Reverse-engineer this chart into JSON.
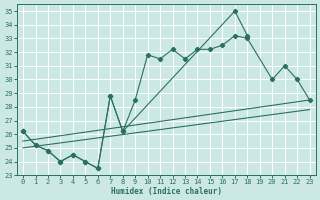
{
  "bg_color": "#cce8e4",
  "line_color": "#2a7060",
  "grid_color": "#ffffff",
  "xlabel": "Humidex (Indice chaleur)",
  "xlim": [
    -0.5,
    23.5
  ],
  "ylim": [
    23,
    35.5
  ],
  "yticks": [
    23,
    24,
    25,
    26,
    27,
    28,
    29,
    30,
    31,
    32,
    33,
    34,
    35
  ],
  "xticks": [
    0,
    1,
    2,
    3,
    4,
    5,
    6,
    7,
    8,
    9,
    10,
    11,
    12,
    13,
    14,
    15,
    16,
    17,
    18,
    19,
    20,
    21,
    22,
    23
  ],
  "line1_x": [
    0,
    1,
    2,
    3,
    4,
    5,
    6,
    7,
    8,
    9,
    10,
    11,
    12,
    13,
    14,
    15,
    16,
    17,
    18,
    19,
    20,
    21,
    22,
    23
  ],
  "line1_y": [
    26.2,
    25.2,
    24.8,
    24.0,
    24.5,
    24.0,
    23.5,
    28.8,
    26.2,
    null,
    null,
    null,
    null,
    null,
    null,
    null,
    null,
    35.0,
    33.2,
    null,
    null,
    null,
    null,
    null
  ],
  "line1_markers_x": [
    0,
    1,
    2,
    3,
    4,
    5,
    6,
    7,
    8,
    17,
    18
  ],
  "line1_markers_y": [
    26.2,
    25.2,
    24.8,
    24.0,
    24.5,
    24.0,
    23.5,
    28.8,
    26.2,
    35.0,
    33.2
  ],
  "line2_x": [
    0,
    1,
    2,
    3,
    4,
    5,
    6,
    7,
    8,
    9,
    10,
    11,
    12,
    13,
    14,
    15,
    16,
    17,
    18,
    19,
    20,
    21,
    22,
    23
  ],
  "line2_y": [
    26.2,
    25.2,
    24.8,
    24.0,
    24.5,
    24.0,
    23.5,
    28.8,
    26.2,
    28.5,
    31.8,
    31.5,
    32.2,
    31.5,
    32.2,
    32.2,
    32.5,
    33.2,
    33.0,
    null,
    30.0,
    31.0,
    30.0,
    28.5
  ],
  "line3_x": [
    0,
    23
  ],
  "line3_y": [
    25.5,
    28.5
  ],
  "line4_x": [
    0,
    23
  ],
  "line4_y": [
    25.8,
    28.8
  ]
}
